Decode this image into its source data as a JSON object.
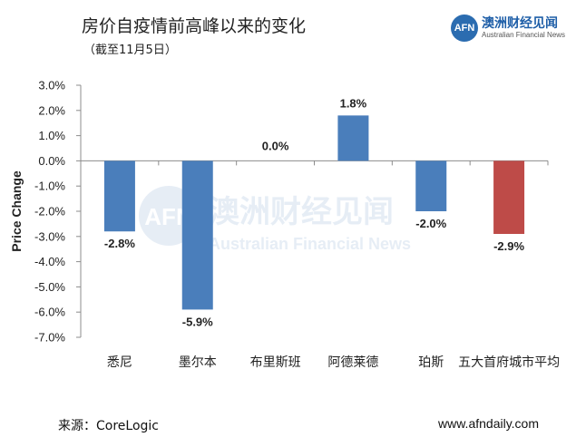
{
  "header": {
    "title": "房价自疫情前高峰以来的变化",
    "subtitle": "（截至11月5日）"
  },
  "logo": {
    "badge": "AFN",
    "name_cn": "澳洲财经见闻",
    "name_en": "Australian Financial News"
  },
  "watermark": {
    "cn": "澳洲财经见闻",
    "en": "Australian Financial News"
  },
  "footer": {
    "source": "来源：CoreLogic",
    "website": "www.afndaily.com"
  },
  "chart_data": {
    "type": "bar",
    "title": "房价自疫情前高峰以来的变化",
    "subtitle": "（截至11月5日）",
    "xlabel": "",
    "ylabel": "Price Change",
    "ylim": [
      -7.0,
      3.0
    ],
    "yticks": [
      3.0,
      2.0,
      1.0,
      0.0,
      -1.0,
      -2.0,
      -3.0,
      -4.0,
      -5.0,
      -6.0,
      -7.0
    ],
    "ytick_labels": [
      "3.0%",
      "2.0%",
      "1.0%",
      "0.0%",
      "-1.0%",
      "-2.0%",
      "-3.0%",
      "-4.0%",
      "-5.0%",
      "-6.0%",
      "-7.0%"
    ],
    "grid": false,
    "categories": [
      "悉尼",
      "墨尔本",
      "布里斯班",
      "阿德莱德",
      "珀斯",
      "五大首府城市平均"
    ],
    "values": [
      -2.8,
      -5.9,
      0.0,
      1.8,
      -2.0,
      -2.9
    ],
    "data_labels": [
      "-2.8%",
      "-5.9%",
      "0.0%",
      "1.8%",
      "-2.0%",
      "-2.9%"
    ],
    "colors": [
      "#4a7ebb",
      "#4a7ebb",
      "#4a7ebb",
      "#4a7ebb",
      "#4a7ebb",
      "#be4b48"
    ]
  }
}
